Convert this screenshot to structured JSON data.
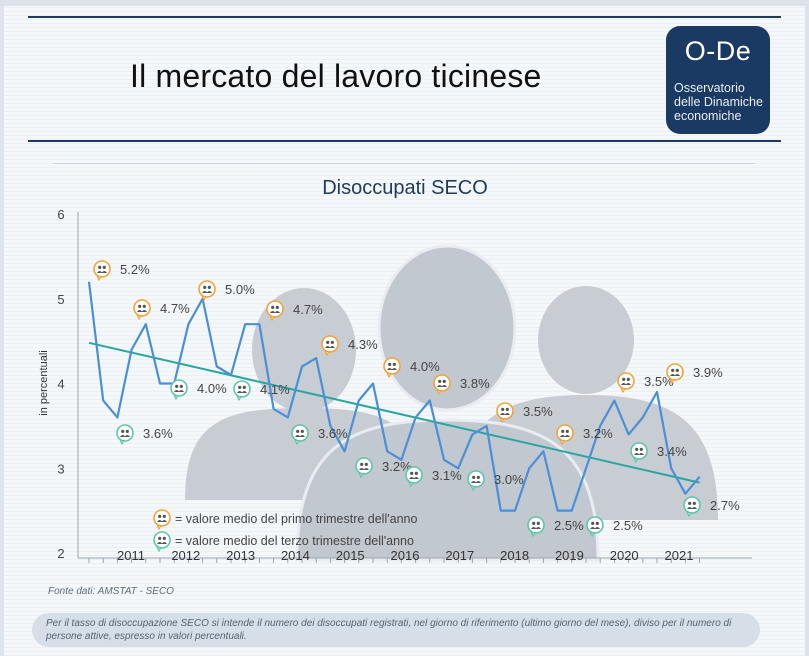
{
  "header": {
    "title": "Il mercato del lavoro ticinese",
    "logo": {
      "title": "O-De",
      "subtitle": "Osservatorio delle Dinamiche economiche"
    }
  },
  "colors": {
    "line": "#4a90d6",
    "trend": "#2aa6a0",
    "q1_badge": "#f0a33a",
    "q3_badge": "#5cc7a8",
    "silhouette": "#c8cdd3",
    "accent": "#1b3a63"
  },
  "icons": {
    "q1_marker": "people-icon",
    "q3_marker": "people-icon"
  },
  "chart_data": {
    "type": "line",
    "title": "Disoccupati SECO",
    "ylabel": "in percentuali",
    "ylim": [
      2,
      6
    ],
    "yticks": [
      "2",
      "3",
      "4",
      "5",
      "6"
    ],
    "years": [
      "2011",
      "2012",
      "2013",
      "2014",
      "2015",
      "2016",
      "2017",
      "2018",
      "2019",
      "2020",
      "2021"
    ],
    "series": [
      {
        "values": [
          5.2,
          3.8,
          3.6,
          4.4,
          4.7,
          4.0,
          4.0,
          4.7,
          5.0,
          4.2,
          4.1,
          4.7,
          4.7,
          3.7,
          3.6,
          4.2,
          4.3,
          3.5,
          3.2,
          3.8,
          4.0,
          3.2,
          3.1,
          3.6,
          3.8,
          3.1,
          3.0,
          3.4,
          3.5,
          2.5,
          2.5,
          3.0,
          3.2,
          2.5,
          2.5,
          3.0,
          3.5,
          3.8,
          3.4,
          3.6,
          3.9,
          3.0,
          2.7,
          2.9
        ]
      }
    ],
    "trend_line": [
      4.48,
      2.83
    ],
    "annotations_q1": [
      {
        "year": "2011",
        "label": "5.2%",
        "value": 5.2
      },
      {
        "year": "2012",
        "label": "4.7%",
        "value": 4.7
      },
      {
        "year": "2013",
        "label": "5.0%",
        "value": 5.0
      },
      {
        "year": "2014",
        "label": "4.7%",
        "value": 4.7
      },
      {
        "year": "2015",
        "label": "4.3%",
        "value": 4.3
      },
      {
        "year": "2016",
        "label": "4.0%",
        "value": 4.0
      },
      {
        "year": "2017",
        "label": "3.8%",
        "value": 3.8
      },
      {
        "year": "2018",
        "label": "3.5%",
        "value": 3.5
      },
      {
        "year": "2019",
        "label": "3.2%",
        "value": 3.2
      },
      {
        "year": "2020",
        "label": "3.5%",
        "value": 3.5
      },
      {
        "year": "2021",
        "label": "3.9%",
        "value": 3.9
      }
    ],
    "annotations_q3": [
      {
        "year": "2011",
        "label": "3.6%",
        "value": 3.6
      },
      {
        "year": "2012",
        "label": "4.0%",
        "value": 4.0
      },
      {
        "year": "2013",
        "label": "4.1%",
        "value": 4.1
      },
      {
        "year": "2014",
        "label": "3.6%",
        "value": 3.6
      },
      {
        "year": "2015",
        "label": "3.2%",
        "value": 3.2
      },
      {
        "year": "2016",
        "label": "3.1%",
        "value": 3.1
      },
      {
        "year": "2017",
        "label": "3.0%",
        "value": 3.0
      },
      {
        "year": "2018",
        "label": "2.5%",
        "value": 2.5
      },
      {
        "year": "2019",
        "label": "2.5%",
        "value": 2.5
      },
      {
        "year": "2020",
        "label": "3.4%",
        "value": 3.4
      },
      {
        "year": "2021",
        "label": "2.7%",
        "value": 2.7
      }
    ],
    "legend": {
      "placement": "bottom-left",
      "q1": "= valore medio del primo trimestre dell'anno",
      "q3": "= valore medio del terzo trimestre dell'anno"
    }
  },
  "footer": {
    "source": "Fonte dati: AMSTAT - SECO",
    "note": "Per il tasso di disoccupazione SECO  si intende il numero dei disoccupati registrati, nel giorno di riferimento (ultimo giorno del mese), diviso per il numero di persone attive,  espresso in valori  percentuali."
  }
}
